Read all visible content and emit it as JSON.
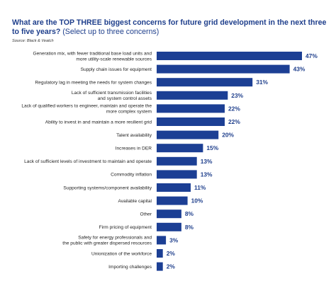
{
  "header": {
    "title_bold": "What are the TOP THREE biggest concerns for future grid development in the next three to five years?",
    "title_light": "(Select up to three concerns)",
    "source": "Source: Black & Veatch"
  },
  "colors": {
    "bar": "#1c3f94",
    "title": "#1f3f8c",
    "value": "#1f3f8c"
  },
  "chart_data": {
    "type": "bar",
    "orientation": "horizontal",
    "categories": [
      [
        "Generation mix, with fewer traditional base load units and",
        "more utility-scale renewable sources"
      ],
      [
        "Supply chain issues for equipment"
      ],
      [
        "Regulatory lag in meeting the needs for system changes"
      ],
      [
        "Lack of sufficient transmission facilities",
        "and system control assets"
      ],
      [
        "Lack of qualified workers to engineer, maintain and operate the",
        "more complex system"
      ],
      [
        "Ability to invest in and maintain a more resilient grid"
      ],
      [
        "Talent availability"
      ],
      [
        "Increases in DER"
      ],
      [
        "Lack of sufficient levels of investment to maintain and operate"
      ],
      [
        "Commodity inflation"
      ],
      [
        "Supporting systems/component availability"
      ],
      [
        "Available capital"
      ],
      [
        "Other"
      ],
      [
        "Firm pricing of equipment"
      ],
      [
        "Safety for energy professionals and",
        "the public with greater dispersed resources"
      ],
      [
        "Unionization of the workforce"
      ],
      [
        "Importing challenges"
      ]
    ],
    "values": [
      47,
      43,
      31,
      23,
      22,
      22,
      20,
      15,
      13,
      13,
      11,
      10,
      8,
      8,
      3,
      2,
      2
    ],
    "value_labels": [
      "47%",
      "43%",
      "31%",
      "23%",
      "22%",
      "22%",
      "20%",
      "15%",
      "13%",
      "13%",
      "11%",
      "10%",
      "8%",
      "8%",
      "3%",
      "2%",
      "2%"
    ],
    "xlim": [
      0,
      47
    ],
    "unit": "%"
  }
}
